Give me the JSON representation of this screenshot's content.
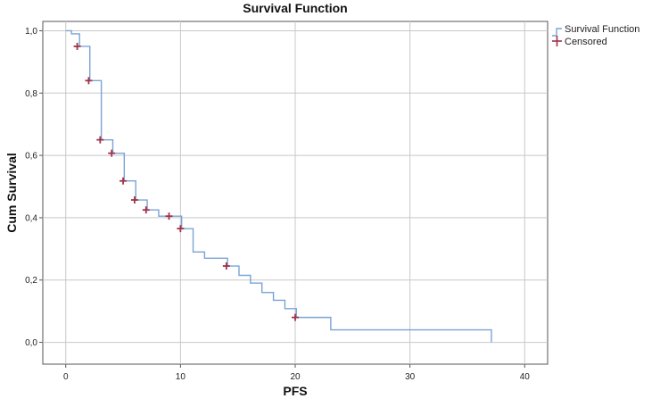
{
  "chart_data": {
    "type": "line",
    "title": "Survival Function",
    "xlabel": "PFS",
    "ylabel": "Cum Survival",
    "xlim": [
      -2,
      42
    ],
    "ylim": [
      -0.07,
      1.03
    ],
    "x_ticks": [
      "0",
      "10",
      "20",
      "30",
      "40"
    ],
    "y_ticks": [
      "0,0",
      "0,2",
      "0,4",
      "0,6",
      "0,8",
      "1,0"
    ],
    "grid": true,
    "legend_position": "top-right",
    "legend": [
      "Survival Function",
      "Censored"
    ],
    "series": [
      {
        "name": "Survival Function",
        "color": "#7aa3d6",
        "steps": [
          [
            0,
            1.0
          ],
          [
            0.5,
            0.99
          ],
          [
            1.2,
            0.95
          ],
          [
            2,
            0.95
          ],
          [
            2.1,
            0.84
          ],
          [
            3,
            0.84
          ],
          [
            3.1,
            0.65
          ],
          [
            4,
            0.65
          ],
          [
            4.1,
            0.607
          ],
          [
            5,
            0.607
          ],
          [
            5.1,
            0.518
          ],
          [
            6,
            0.518
          ],
          [
            6.1,
            0.457
          ],
          [
            7,
            0.457
          ],
          [
            7.1,
            0.425
          ],
          [
            8,
            0.425
          ],
          [
            8.1,
            0.405
          ],
          [
            10,
            0.405
          ],
          [
            10.1,
            0.365
          ],
          [
            11,
            0.365
          ],
          [
            11.1,
            0.29
          ],
          [
            12,
            0.29
          ],
          [
            12.1,
            0.27
          ],
          [
            14,
            0.27
          ],
          [
            14.1,
            0.245
          ],
          [
            15,
            0.245
          ],
          [
            15.1,
            0.215
          ],
          [
            16,
            0.215
          ],
          [
            16.1,
            0.19
          ],
          [
            17,
            0.19
          ],
          [
            17.1,
            0.16
          ],
          [
            18,
            0.16
          ],
          [
            18.1,
            0.135
          ],
          [
            19,
            0.135
          ],
          [
            19.1,
            0.108
          ],
          [
            20,
            0.108
          ],
          [
            20.1,
            0.08
          ],
          [
            23,
            0.08
          ],
          [
            23.1,
            0.04
          ],
          [
            37,
            0.04
          ],
          [
            37.1,
            0.0
          ]
        ]
      },
      {
        "name": "Censored",
        "color": "#a0324a",
        "points": [
          [
            1,
            0.95
          ],
          [
            2,
            0.84
          ],
          [
            3,
            0.65
          ],
          [
            4,
            0.607
          ],
          [
            5,
            0.518
          ],
          [
            6,
            0.457
          ],
          [
            7,
            0.425
          ],
          [
            9,
            0.405
          ],
          [
            10,
            0.365
          ],
          [
            14,
            0.245
          ],
          [
            20,
            0.08
          ]
        ]
      }
    ]
  }
}
